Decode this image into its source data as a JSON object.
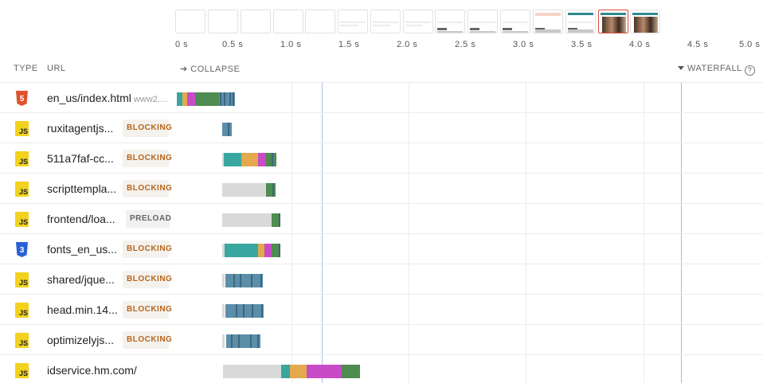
{
  "filmstrip": {
    "frames": [
      "blank",
      "blank",
      "blank",
      "blank",
      "blank",
      "light",
      "light",
      "light",
      "dark",
      "dark",
      "dark",
      "pink",
      "teal",
      "photo-selected",
      "photo"
    ]
  },
  "timeline": {
    "ticks": [
      "0 s",
      "0.5 s",
      "1.0 s",
      "1.5 s",
      "2.0 s",
      "2.5 s",
      "3.0 s",
      "3.5 s",
      "4.0 s",
      "4.5 s",
      "5.0 s"
    ]
  },
  "header": {
    "type_label": "TYPE",
    "url_label": "URL",
    "collapse_label": "➔ COLLAPSE",
    "waterfall_label": "WATERFALL",
    "help_glyph": "?"
  },
  "colors": {
    "dns": "#3aa6a0",
    "connect": "#e3a94c",
    "ssl": "#c84bc8",
    "ttfb": "#4e8c51",
    "download": "#5b8ea8",
    "queued": "#d9d9d9",
    "marker_blue": "#aec4ea",
    "marker_red": "#e8a99a"
  },
  "requests": [
    {
      "icon": "html",
      "url": "en_us/index.html",
      "domain": "www2....",
      "badge": "",
      "type": "html"
    },
    {
      "icon": "js",
      "url": "ruxitagentjs...",
      "badge": "BLOCKING",
      "type": "js"
    },
    {
      "icon": "js",
      "url": "511a7faf-cc...",
      "badge": "BLOCKING",
      "type": "js"
    },
    {
      "icon": "js",
      "url": "scripttempla...",
      "badge": "BLOCKING",
      "type": "js"
    },
    {
      "icon": "js",
      "url": "frontend/loa...",
      "badge": "PRELOAD",
      "type": "js"
    },
    {
      "icon": "css",
      "url": "fonts_en_us...",
      "badge": "BLOCKING",
      "type": "css"
    },
    {
      "icon": "js",
      "url": "shared/jque...",
      "badge": "BLOCKING",
      "type": "js"
    },
    {
      "icon": "js",
      "url": "head.min.14...",
      "badge": "BLOCKING",
      "type": "js"
    },
    {
      "icon": "js",
      "url": "optimizelyjs...",
      "badge": "BLOCKING",
      "type": "js"
    },
    {
      "icon": "js",
      "url": "idservice.hm.com/",
      "badge": "",
      "type": "js"
    }
  ],
  "icon_text": {
    "js": "JS",
    "css": "3",
    "html": "5"
  }
}
